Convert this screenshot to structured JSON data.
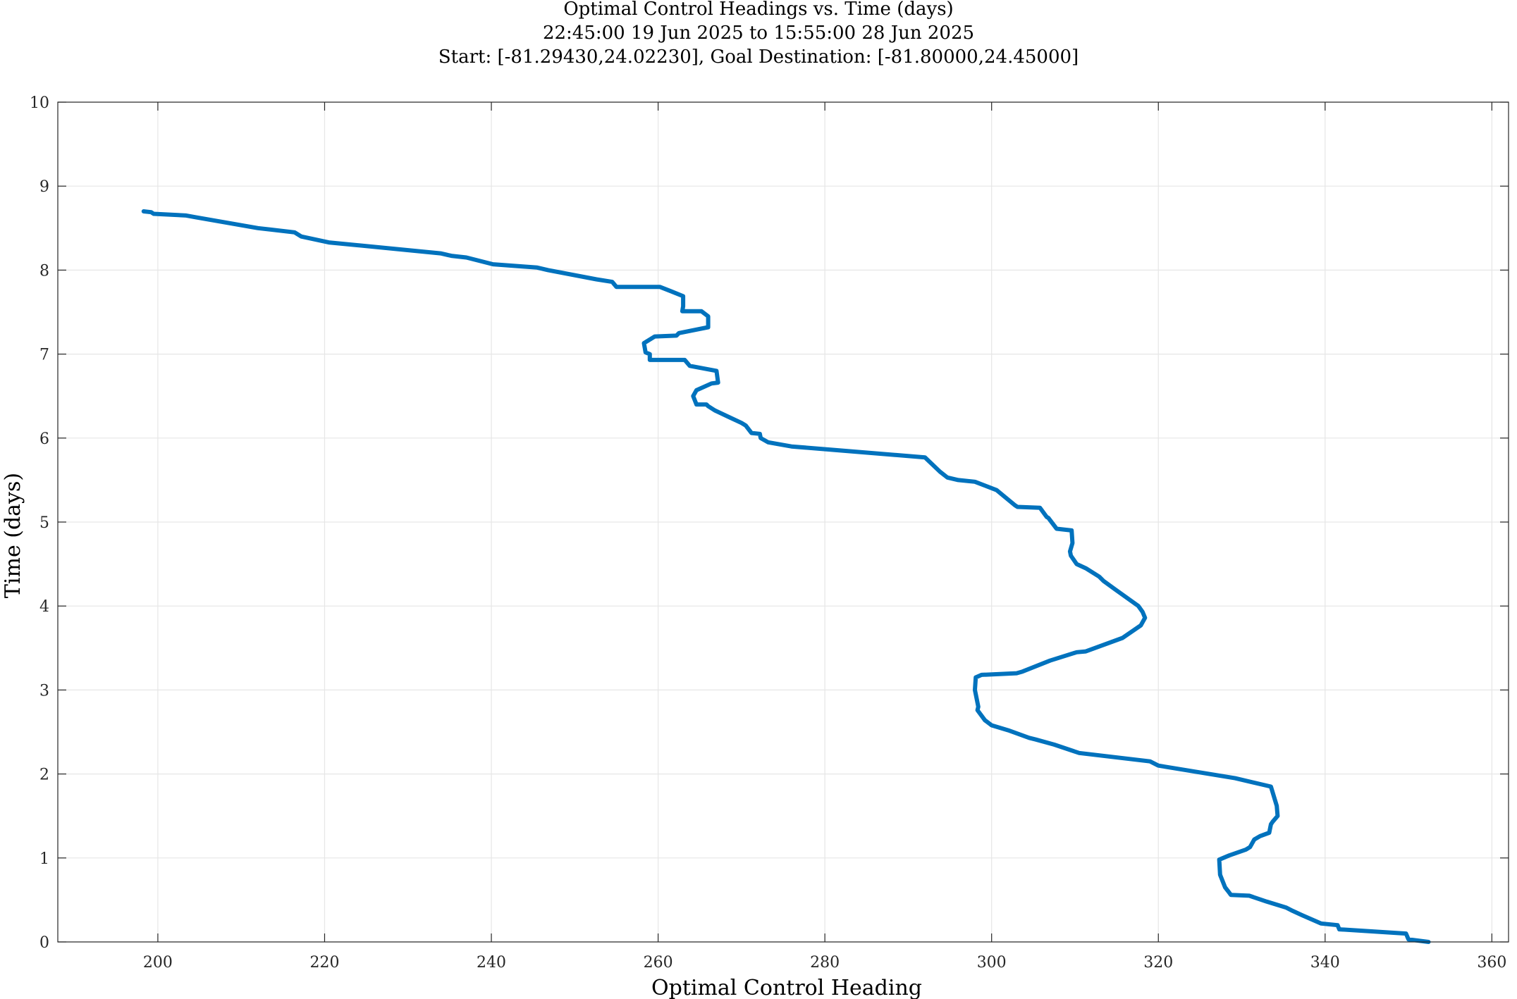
{
  "chart_data": {
    "type": "line",
    "title": "Optimal Control Headings vs. Time (days)",
    "subtitle_lines": [
      "22:45:00 19 Jun 2025 to 15:55:00 28 Jun 2025",
      "Start: [-81.29430,24.02230], Goal Destination: [-81.80000,24.45000]"
    ],
    "xlabel": "Optimal Control Heading",
    "ylabel": "Time (days)",
    "xlim": [
      188,
      362
    ],
    "ylim": [
      0,
      10
    ],
    "xticks": [
      200,
      220,
      240,
      260,
      280,
      300,
      320,
      340,
      360
    ],
    "yticks": [
      0,
      1,
      2,
      3,
      4,
      5,
      6,
      7,
      8,
      9,
      10
    ],
    "grid": true,
    "legend": "none",
    "colors": {
      "line": "#0072BD",
      "grid": "#e6e6e6",
      "axes": "#262626"
    },
    "series": [
      {
        "x": [
          352.4,
          350.0,
          349.7,
          341.7,
          341.5,
          339.5,
          337.2,
          336.1,
          335.3,
          333.0,
          330.9,
          328.7,
          328.4,
          328.0,
          327.4,
          327.3,
          328.5,
          330.5,
          331.0,
          331.5,
          332.2,
          333.3,
          333.5,
          333.7,
          334.3,
          334.2,
          333.5,
          329.2,
          320.0,
          319.0,
          310.5,
          307.5,
          305.3,
          304.5,
          302.0,
          300.0,
          299.2,
          298.3,
          298.4,
          298.0,
          298.1,
          298.8,
          303.0,
          303.7,
          307.0,
          310.2,
          311.3,
          315.7,
          317.9,
          318.4,
          318.1,
          317.6,
          314.8,
          313.4,
          312.9,
          311.3,
          310.2,
          309.5,
          309.4,
          309.7,
          309.6,
          307.8,
          306.8,
          306.6,
          305.8,
          303.1,
          302.8,
          300.6,
          298.0,
          296.0,
          294.7,
          293.8,
          292.0,
          276.0,
          273.2,
          272.3,
          272.2,
          271.2,
          270.5,
          270.0,
          268.5,
          266.8,
          266.0,
          265.8,
          264.6,
          264.2,
          264.6,
          266.4,
          267.2,
          267.0,
          263.8,
          263.2,
          259.0,
          259.0,
          258.5,
          258.3,
          259.6,
          262.2,
          262.5,
          266.0,
          266.0,
          265.2,
          262.9,
          263.0,
          263.0,
          261.5,
          260.2,
          255.0,
          254.5,
          252.6,
          246.8,
          245.5,
          240.2,
          237.0,
          235.2,
          233.9,
          220.5,
          217.2,
          216.4,
          212.0,
          204.5,
          203.4,
          199.5,
          199.2,
          198.3
        ],
        "y": [
          0.0,
          0.03,
          0.1,
          0.15,
          0.2,
          0.22,
          0.32,
          0.37,
          0.41,
          0.48,
          0.55,
          0.56,
          0.6,
          0.65,
          0.8,
          0.98,
          1.03,
          1.1,
          1.13,
          1.22,
          1.26,
          1.3,
          1.4,
          1.43,
          1.5,
          1.62,
          1.85,
          1.95,
          2.1,
          2.15,
          2.25,
          2.35,
          2.41,
          2.43,
          2.52,
          2.58,
          2.64,
          2.76,
          2.8,
          3.0,
          3.15,
          3.18,
          3.2,
          3.22,
          3.35,
          3.45,
          3.46,
          3.62,
          3.77,
          3.86,
          3.93,
          4.0,
          4.2,
          4.3,
          4.35,
          4.45,
          4.5,
          4.6,
          4.65,
          4.75,
          4.9,
          4.92,
          5.05,
          5.06,
          5.17,
          5.18,
          5.2,
          5.38,
          5.48,
          5.5,
          5.53,
          5.6,
          5.77,
          5.9,
          5.95,
          6.0,
          6.05,
          6.06,
          6.15,
          6.18,
          6.25,
          6.33,
          6.38,
          6.4,
          6.4,
          6.5,
          6.57,
          6.65,
          6.66,
          6.8,
          6.86,
          6.93,
          6.93,
          7.0,
          7.02,
          7.13,
          7.21,
          7.22,
          7.25,
          7.32,
          7.45,
          7.51,
          7.51,
          7.57,
          7.69,
          7.75,
          7.8,
          7.8,
          7.86,
          7.89,
          8.0,
          8.03,
          8.07,
          8.15,
          8.17,
          8.2,
          8.33,
          8.4,
          8.45,
          8.5,
          8.63,
          8.65,
          8.67,
          8.69,
          8.7
        ]
      }
    ]
  }
}
